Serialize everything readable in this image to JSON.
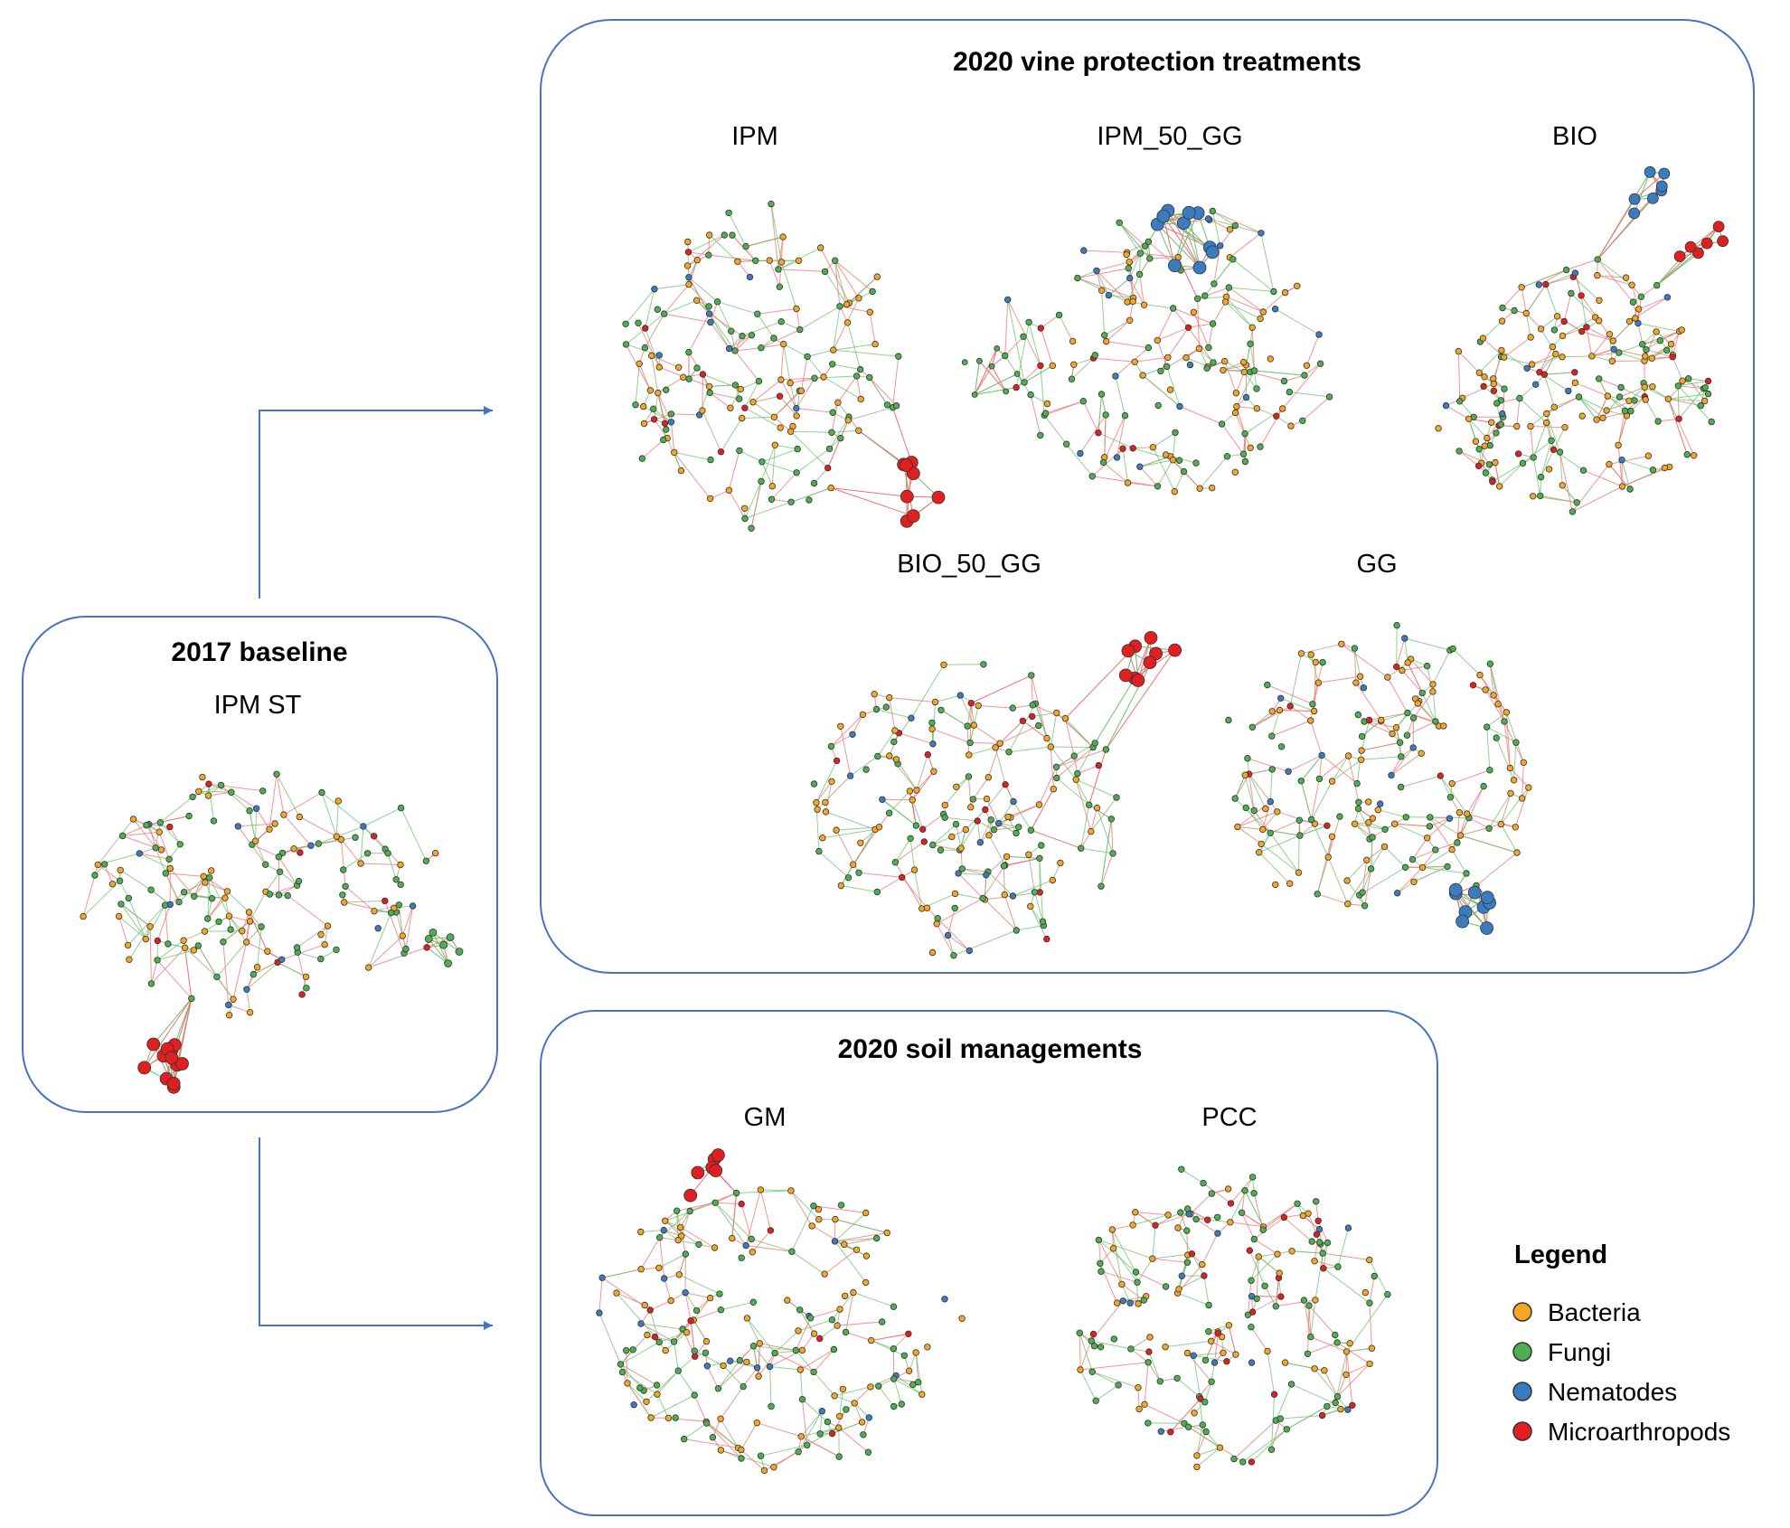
{
  "figure": {
    "baseline_panel": {
      "title": "2017 baseline"
    },
    "protection_panel": {
      "title": "2020 vine protection treatments"
    },
    "soil_panel": {
      "title": "2020 soil managements"
    }
  },
  "networks": {
    "ipm_st": {
      "label": "IPM ST"
    },
    "ipm": {
      "label": "IPM"
    },
    "ipm_50_gg": {
      "label": "IPM_50_GG"
    },
    "bio": {
      "label": "BIO"
    },
    "bio_50_gg": {
      "label": "BIO_50_GG"
    },
    "gg": {
      "label": "GG"
    },
    "gm": {
      "label": "GM"
    },
    "pcc": {
      "label": "PCC"
    }
  },
  "legend": {
    "title": "Legend",
    "items": [
      {
        "label": "Bacteria",
        "color": "#f5a623"
      },
      {
        "label": "Fungi",
        "color": "#4caf50"
      },
      {
        "label": "Nematodes",
        "color": "#3b7cc0"
      },
      {
        "label": "Microarthropods",
        "color": "#e02020"
      }
    ]
  },
  "colors": {
    "panel_border": "#4472c4",
    "arrow": "#4472c4",
    "positive_edge": "#6cc06c",
    "negative_edge": "#f07070",
    "node_stroke": "#333333"
  }
}
